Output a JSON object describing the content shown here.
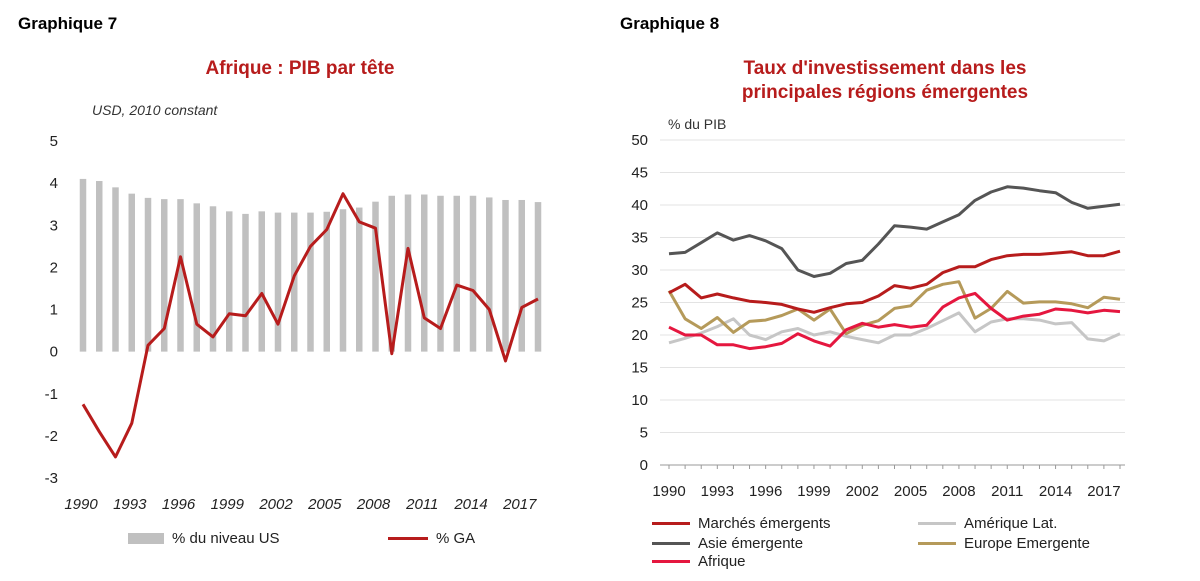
{
  "chart_data": [
    {
      "id": "graphique-7",
      "label": "Graphique 7",
      "type": "bar+line",
      "title": "Afrique : PIB par tête",
      "ylabel": "USD, 2010 constant",
      "xlabel": "",
      "ylim": [
        -3,
        5
      ],
      "yticks": [
        "5",
        "4",
        "3",
        "2",
        "1",
        "0",
        "-1",
        "-2",
        "-3"
      ],
      "xticks": [
        "1990",
        "1993",
        "1996",
        "1999",
        "2002",
        "2005",
        "2008",
        "2011",
        "2014",
        "2017"
      ],
      "x": [
        1990,
        1991,
        1992,
        1993,
        1994,
        1995,
        1996,
        1997,
        1998,
        1999,
        2000,
        2001,
        2002,
        2003,
        2004,
        2005,
        2006,
        2007,
        2008,
        2009,
        2010,
        2011,
        2012,
        2013,
        2014,
        2015,
        2016,
        2017,
        2018
      ],
      "series": [
        {
          "name": "% du niveau US",
          "kind": "bar",
          "color": "#c0c0c0",
          "values": [
            4.1,
            4.05,
            3.9,
            3.75,
            3.65,
            3.62,
            3.62,
            3.52,
            3.45,
            3.33,
            3.27,
            3.33,
            3.3,
            3.3,
            3.3,
            3.32,
            3.38,
            3.42,
            3.56,
            3.7,
            3.73,
            3.73,
            3.7,
            3.7,
            3.7,
            3.66,
            3.6,
            3.6,
            3.55
          ]
        },
        {
          "name": "% GA",
          "kind": "line",
          "color": "#b71c1c",
          "values": [
            -1.25,
            -1.9,
            -2.5,
            -1.7,
            0.15,
            0.55,
            2.25,
            0.65,
            0.35,
            0.9,
            0.85,
            1.38,
            0.65,
            1.8,
            2.5,
            2.9,
            3.75,
            3.08,
            2.93,
            -0.05,
            2.45,
            0.8,
            0.55,
            1.58,
            1.45,
            1.0,
            -0.22,
            1.05,
            1.25
          ]
        }
      ],
      "legend": [
        "% du niveau US",
        "% GA"
      ],
      "legend_position": "bottom"
    },
    {
      "id": "graphique-8",
      "label": "Graphique 8",
      "type": "line",
      "title": "Taux d'investissement dans les principales régions émergentes",
      "title_lines": [
        "Taux d'investissement dans les",
        "principales régions émergentes"
      ],
      "ylabel": "% du PIB",
      "xlabel": "",
      "ylim": [
        0,
        50
      ],
      "yticks": [
        "50",
        "45",
        "40",
        "35",
        "30",
        "25",
        "20",
        "15",
        "10",
        "5",
        "0"
      ],
      "xticks": [
        "1990",
        "1993",
        "1996",
        "1999",
        "2002",
        "2005",
        "2008",
        "2011",
        "2014",
        "2017"
      ],
      "x": [
        1990,
        1991,
        1992,
        1993,
        1994,
        1995,
        1996,
        1997,
        1998,
        1999,
        2000,
        2001,
        2002,
        2003,
        2004,
        2005,
        2006,
        2007,
        2008,
        2009,
        2010,
        2011,
        2012,
        2013,
        2014,
        2015,
        2016,
        2017,
        2018
      ],
      "series": [
        {
          "name": "Marchés émergents",
          "color": "#b71c1c",
          "values": [
            26.5,
            27.8,
            25.7,
            26.3,
            25.7,
            25.2,
            25.0,
            24.7,
            24.0,
            23.5,
            24.2,
            24.8,
            25.0,
            26.0,
            27.6,
            27.2,
            27.8,
            29.6,
            30.5,
            30.5,
            31.6,
            32.2,
            32.4,
            32.4,
            32.6,
            32.8,
            32.2,
            32.2,
            32.9
          ]
        },
        {
          "name": "Asie émergente",
          "color": "#555555",
          "values": [
            32.5,
            32.7,
            34.2,
            35.7,
            34.6,
            35.3,
            34.5,
            33.3,
            30.0,
            29.0,
            29.5,
            31.0,
            31.5,
            34.0,
            36.8,
            36.6,
            36.3,
            37.4,
            38.5,
            40.7,
            42.0,
            42.8,
            42.6,
            42.2,
            41.9,
            40.4,
            39.5,
            39.8,
            40.1
          ]
        },
        {
          "name": "Afrique",
          "color": "#e5173f",
          "values": [
            21.2,
            20.0,
            20.0,
            18.5,
            18.5,
            17.9,
            18.2,
            18.7,
            20.2,
            19.1,
            18.3,
            20.8,
            21.8,
            21.2,
            21.6,
            21.2,
            21.5,
            24.3,
            25.7,
            26.4,
            24.1,
            22.3,
            22.9,
            23.2,
            24.0,
            23.8,
            23.4,
            23.8,
            23.6
          ]
        },
        {
          "name": "Amérique Lat.",
          "color": "#c6c6c6",
          "values": [
            18.8,
            19.5,
            20.3,
            21.3,
            22.5,
            20.0,
            19.3,
            20.5,
            21.0,
            20.0,
            20.5,
            19.8,
            19.3,
            18.8,
            20.0,
            20.0,
            21.0,
            22.2,
            23.4,
            20.5,
            22.0,
            22.5,
            22.5,
            22.3,
            21.7,
            21.9,
            19.4,
            19.1,
            20.2
          ]
        },
        {
          "name": "Europe Emergente",
          "color": "#b59a5a",
          "values": [
            26.8,
            22.5,
            21.0,
            22.7,
            20.4,
            22.1,
            22.3,
            23.0,
            24.0,
            22.3,
            24.0,
            20.2,
            21.5,
            22.2,
            24.1,
            24.5,
            26.9,
            27.8,
            28.2,
            22.6,
            24.1,
            26.7,
            24.9,
            25.1,
            25.1,
            24.8,
            24.2,
            25.8,
            25.5
          ]
        }
      ],
      "legend": [
        "Marchés émergents",
        "Amérique Lat.",
        "Asie émergente",
        "Europe Emergente",
        "Afrique"
      ],
      "legend_position": "bottom"
    }
  ]
}
